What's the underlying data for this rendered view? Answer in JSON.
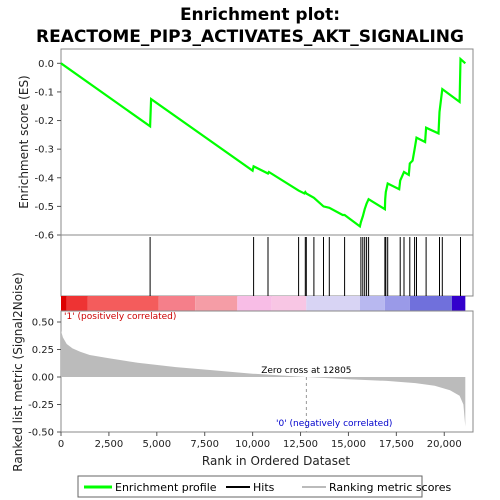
{
  "title_line1": "Enrichment plot:",
  "title_line2": "REACTOME_PIP3_ACTIVATES_AKT_SIGNALING",
  "chart_data": {
    "type": "line",
    "es_panel": {
      "ylabel": "Enrichment score (ES)",
      "ylim": [
        -0.6,
        0.05
      ],
      "yticks": [
        "0.0",
        "-0.1",
        "-0.2",
        "-0.3",
        "-0.4",
        "-0.5",
        "-0.6"
      ],
      "ytick_values": [
        0.0,
        -0.1,
        -0.2,
        -0.3,
        -0.4,
        -0.5,
        -0.6
      ],
      "series_color": "#00ff00",
      "points": [
        [
          0,
          0.0
        ],
        [
          4650,
          -0.22
        ],
        [
          4700,
          -0.125
        ],
        [
          10000,
          -0.375
        ],
        [
          10050,
          -0.36
        ],
        [
          10800,
          -0.385
        ],
        [
          10850,
          -0.38
        ],
        [
          12400,
          -0.445
        ],
        [
          12700,
          -0.455
        ],
        [
          12750,
          -0.45
        ],
        [
          12800,
          -0.455
        ],
        [
          13200,
          -0.47
        ],
        [
          13700,
          -0.5
        ],
        [
          14000,
          -0.505
        ],
        [
          14700,
          -0.53
        ],
        [
          14800,
          -0.53
        ],
        [
          15600,
          -0.57
        ],
        [
          15650,
          -0.555
        ],
        [
          15750,
          -0.535
        ],
        [
          15850,
          -0.51
        ],
        [
          15950,
          -0.49
        ],
        [
          16050,
          -0.475
        ],
        [
          16900,
          -0.51
        ],
        [
          16920,
          -0.475
        ],
        [
          16950,
          -0.45
        ],
        [
          17050,
          -0.42
        ],
        [
          17650,
          -0.44
        ],
        [
          17700,
          -0.41
        ],
        [
          17900,
          -0.38
        ],
        [
          18150,
          -0.39
        ],
        [
          18200,
          -0.35
        ],
        [
          18350,
          -0.34
        ],
        [
          18450,
          -0.3
        ],
        [
          18550,
          -0.26
        ],
        [
          19000,
          -0.275
        ],
        [
          19050,
          -0.225
        ],
        [
          19700,
          -0.245
        ],
        [
          19750,
          -0.17
        ],
        [
          19900,
          -0.09
        ],
        [
          20800,
          -0.135
        ],
        [
          20850,
          0.015
        ],
        [
          21100,
          0.0
        ]
      ]
    },
    "hits_panel": {
      "hit_positions": [
        4650,
        10050,
        10800,
        12400,
        12750,
        12800,
        13200,
        13700,
        14000,
        14800,
        15650,
        15750,
        15850,
        15950,
        16050,
        16900,
        16950,
        17050,
        17700,
        17900,
        18200,
        18450,
        18550,
        19050,
        19750,
        19900,
        20850
      ]
    },
    "rank_panel": {
      "ylabel": "Ranked list metric (Signal2Noise)",
      "xlabel": "Rank in Ordered Dataset",
      "ylim": [
        -0.5,
        0.6
      ],
      "yticks": [
        "0.50",
        "0.25",
        "0.00",
        "-0.25",
        "-0.50"
      ],
      "ytick_values": [
        0.5,
        0.25,
        0.0,
        -0.25,
        -0.5
      ],
      "xlim": [
        0,
        21500
      ],
      "xticks": [
        "0",
        "2,500",
        "5,000",
        "7,500",
        "10,000",
        "12,500",
        "15,000",
        "17,500",
        "20,000"
      ],
      "xtick_values": [
        0,
        2500,
        5000,
        7500,
        10000,
        12500,
        15000,
        17500,
        20000
      ],
      "zero_cross": 12805,
      "zero_cross_label": "Zero cross at 12805",
      "pos_label": "'1' (positively correlated)",
      "neg_label": "'0' (negatively correlated)",
      "metric_curve": [
        [
          0,
          0.42
        ],
        [
          100,
          0.36
        ],
        [
          300,
          0.3
        ],
        [
          600,
          0.26
        ],
        [
          1000,
          0.23
        ],
        [
          1500,
          0.2
        ],
        [
          2500,
          0.17
        ],
        [
          4000,
          0.13
        ],
        [
          6000,
          0.09
        ],
        [
          8000,
          0.06
        ],
        [
          10000,
          0.03
        ],
        [
          12805,
          0.0
        ],
        [
          15000,
          -0.02
        ],
        [
          17000,
          -0.035
        ],
        [
          18500,
          -0.055
        ],
        [
          19500,
          -0.08
        ],
        [
          20300,
          -0.12
        ],
        [
          20800,
          -0.17
        ],
        [
          21000,
          -0.25
        ],
        [
          21100,
          -0.45
        ]
      ],
      "colorbar_segments": [
        {
          "from": 0,
          "to": 300,
          "color": "#dd0000"
        },
        {
          "from": 300,
          "to": 1400,
          "color": "#ee3333"
        },
        {
          "from": 1400,
          "to": 5100,
          "color": "#f45c5c"
        },
        {
          "from": 5100,
          "to": 7000,
          "color": "#f57f8a"
        },
        {
          "from": 7000,
          "to": 9200,
          "color": "#f59da6"
        },
        {
          "from": 9200,
          "to": 11000,
          "color": "#f8bde6"
        },
        {
          "from": 11000,
          "to": 12800,
          "color": "#f8c6e4"
        },
        {
          "from": 12800,
          "to": 15600,
          "color": "#d8d4f4"
        },
        {
          "from": 15600,
          "to": 16900,
          "color": "#b8b8f0"
        },
        {
          "from": 16900,
          "to": 18200,
          "color": "#9a9ae8"
        },
        {
          "from": 18200,
          "to": 20400,
          "color": "#7070dc"
        },
        {
          "from": 20400,
          "to": 21100,
          "color": "#3300cc"
        }
      ]
    },
    "legend": {
      "items": [
        {
          "label": "Enrichment profile",
          "color": "#00ff00"
        },
        {
          "label": "Hits",
          "color": "#000000"
        },
        {
          "label": "Ranking metric scores",
          "color": "#bbbbbb"
        }
      ]
    }
  }
}
